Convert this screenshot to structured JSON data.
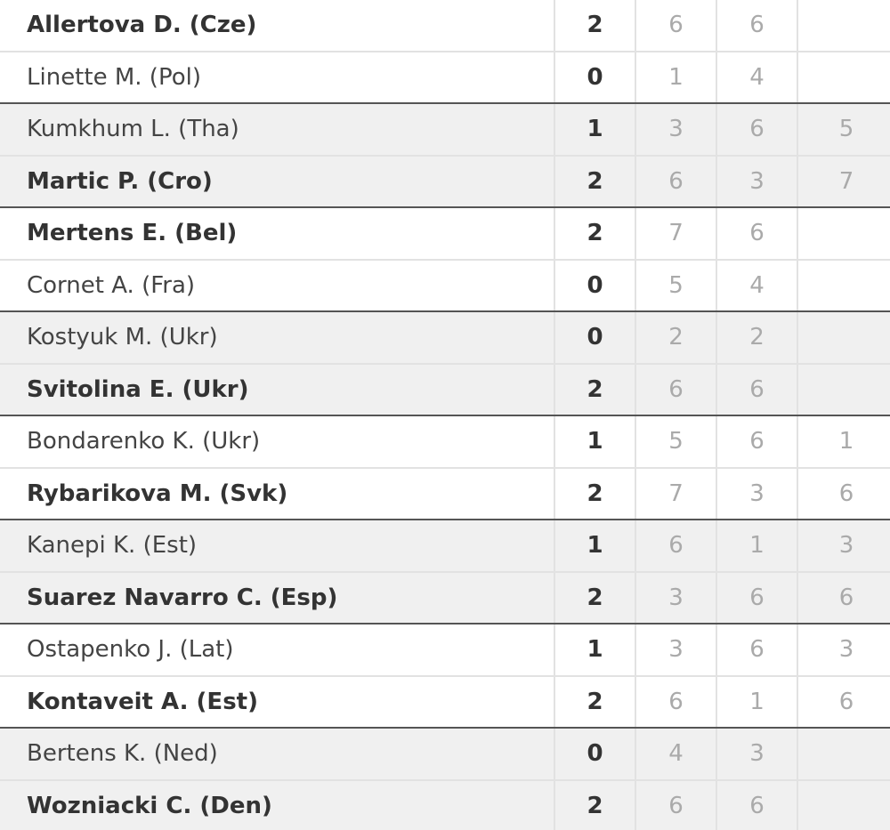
{
  "matches": [
    {
      "players": [
        {
          "name": "Allertova D. (Cze)",
          "sets": 2,
          "scores": [
            6,
            6
          ]
        },
        {
          "name": "Linette M. (Pol)",
          "sets": 0,
          "scores": [
            1,
            4
          ]
        }
      ]
    },
    {
      "players": [
        {
          "name": "Kumkhum L. (Tha)",
          "sets": 1,
          "scores": [
            3,
            6,
            5
          ]
        },
        {
          "name": "Martic P. (Cro)",
          "sets": 2,
          "scores": [
            6,
            3,
            7
          ]
        }
      ]
    },
    {
      "players": [
        {
          "name": "Mertens E. (Bel)",
          "sets": 2,
          "scores": [
            7,
            6
          ]
        },
        {
          "name": "Cornet A. (Fra)",
          "sets": 0,
          "scores": [
            5,
            4
          ]
        }
      ]
    },
    {
      "players": [
        {
          "name": "Kostyuk M. (Ukr)",
          "sets": 0,
          "scores": [
            2,
            2
          ]
        },
        {
          "name": "Svitolina E. (Ukr)",
          "sets": 2,
          "scores": [
            6,
            6
          ]
        }
      ]
    },
    {
      "players": [
        {
          "name": "Bondarenko K. (Ukr)",
          "sets": 1,
          "scores": [
            5,
            6,
            1
          ]
        },
        {
          "name": "Rybarikova M. (Svk)",
          "sets": 2,
          "scores": [
            7,
            3,
            6
          ]
        }
      ]
    },
    {
      "players": [
        {
          "name": "Kanepi K. (Est)",
          "sets": 1,
          "scores": [
            6,
            1,
            3
          ]
        },
        {
          "name": "Suarez Navarro C. (Esp)",
          "sets": 2,
          "scores": [
            3,
            6,
            6
          ]
        }
      ]
    },
    {
      "players": [
        {
          "name": "Ostapenko J. (Lat)",
          "sets": 1,
          "scores": [
            3,
            6,
            3
          ]
        },
        {
          "name": "Kontaveit A. (Est)",
          "sets": 2,
          "scores": [
            6,
            1,
            6
          ]
        }
      ]
    },
    {
      "players": [
        {
          "name": "Bertens K. (Ned)",
          "sets": 0,
          "scores": [
            4,
            3
          ]
        },
        {
          "name": "Wozniacki C. (Den)",
          "sets": 2,
          "scores": [
            6,
            6
          ]
        }
      ]
    }
  ]
}
